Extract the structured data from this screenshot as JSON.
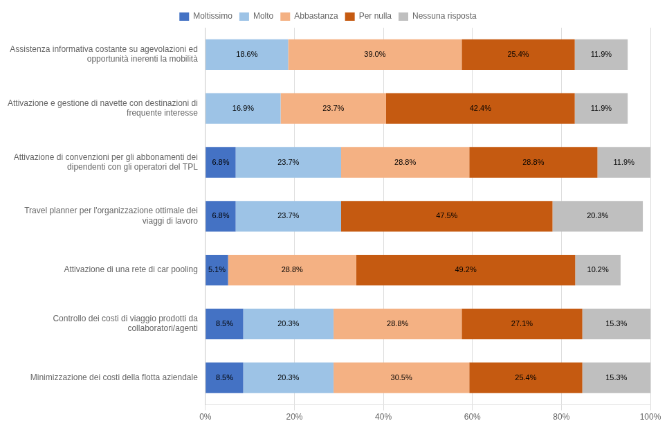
{
  "chart_data": {
    "type": "bar",
    "orientation": "horizontal",
    "stacked": true,
    "data_labels": true,
    "legend": "top",
    "grid": true,
    "categories": [
      "Assistenza informativa costante su agevolazioni ed\nopportunità inerenti la mobilità",
      "Attivazione e gestione di navette con destinazioni di\nfrequente interesse",
      "Attivazione di convenzioni per gli abbonamenti dei\ndipendenti con gli operatori del TPL",
      "Travel planner per l'organizzazione ottimale dei\nviaggi di lavoro",
      "Attivazione di una rete di car pooling",
      "Controllo dei costi di viaggio prodotti da\ncollaboratori/agenti",
      "Minimizzazione dei costi della flotta aziendale"
    ],
    "series": [
      {
        "name": "Moltissimo",
        "color": "#4472C4",
        "values": [
          0.0,
          0.0,
          6.8,
          6.8,
          5.1,
          8.5,
          8.5
        ],
        "value_labels": [
          null,
          null,
          "6.8%",
          "6.8%",
          "5.1%",
          "8.5%",
          "8.5%"
        ]
      },
      {
        "name": "Molto",
        "color": "#9DC3E6",
        "values": [
          18.6,
          16.9,
          23.7,
          23.7,
          0.0,
          20.3,
          20.3
        ],
        "value_labels": [
          "18.6%",
          "16.9%",
          "23.7%",
          "23.7%",
          null,
          "20.3%",
          "20.3%"
        ]
      },
      {
        "name": "Abbastanza",
        "color": "#F4B183",
        "values": [
          39.0,
          23.7,
          28.8,
          0.0,
          28.8,
          28.8,
          30.5
        ],
        "value_labels": [
          "39.0%",
          "23.7%",
          "28.8%",
          null,
          "28.8%",
          "28.8%",
          "30.5%"
        ]
      },
      {
        "name": "Per nulla",
        "color": "#C55A11",
        "values": [
          25.4,
          42.4,
          28.8,
          47.5,
          49.2,
          27.1,
          25.4
        ],
        "value_labels": [
          "25.4%",
          "42.4%",
          "28.8%",
          "47.5%",
          "49.2%",
          "27.1%",
          "25.4%"
        ]
      },
      {
        "name": "Nessuna risposta",
        "color": "#BFBFBF",
        "values": [
          11.9,
          11.9,
          11.9,
          20.3,
          10.2,
          15.3,
          15.3
        ],
        "value_labels": [
          "11.9%",
          "11.9%",
          "11.9%",
          "20.3%",
          "10.2%",
          "15.3%",
          "15.3%"
        ]
      }
    ],
    "xlim": [
      0,
      100
    ],
    "xticks": [
      {
        "value": 0,
        "label": "0%"
      },
      {
        "value": 20,
        "label": "20%"
      },
      {
        "value": 40,
        "label": "40%"
      },
      {
        "value": 60,
        "label": "60%"
      },
      {
        "value": 80,
        "label": "80%"
      },
      {
        "value": 100,
        "label": "100%"
      }
    ]
  }
}
